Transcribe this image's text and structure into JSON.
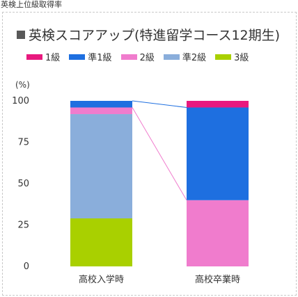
{
  "caption": "英検上位級取得率",
  "chart_data": {
    "type": "bar",
    "stacked": true,
    "title": "英検スコアアップ(特進留学コース12期生)",
    "ylabel": "(%)",
    "ylim": [
      0,
      100
    ],
    "yticks": [
      0,
      25,
      50,
      75,
      100
    ],
    "categories": [
      "高校入学時",
      "高校卒業時"
    ],
    "legend_position": "top",
    "grid": false,
    "connector_lines": true,
    "series": [
      {
        "name": "1級",
        "color": "#e8197e",
        "values": [
          0,
          4
        ]
      },
      {
        "name": "準1級",
        "color": "#1e6fe0",
        "values": [
          4,
          56
        ]
      },
      {
        "name": "2級",
        "color": "#f07ccd",
        "values": [
          4,
          40
        ]
      },
      {
        "name": "準2級",
        "color": "#8aaedb",
        "values": [
          63,
          0
        ]
      },
      {
        "name": "3級",
        "color": "#a9d000",
        "values": [
          29,
          0
        ]
      }
    ]
  }
}
